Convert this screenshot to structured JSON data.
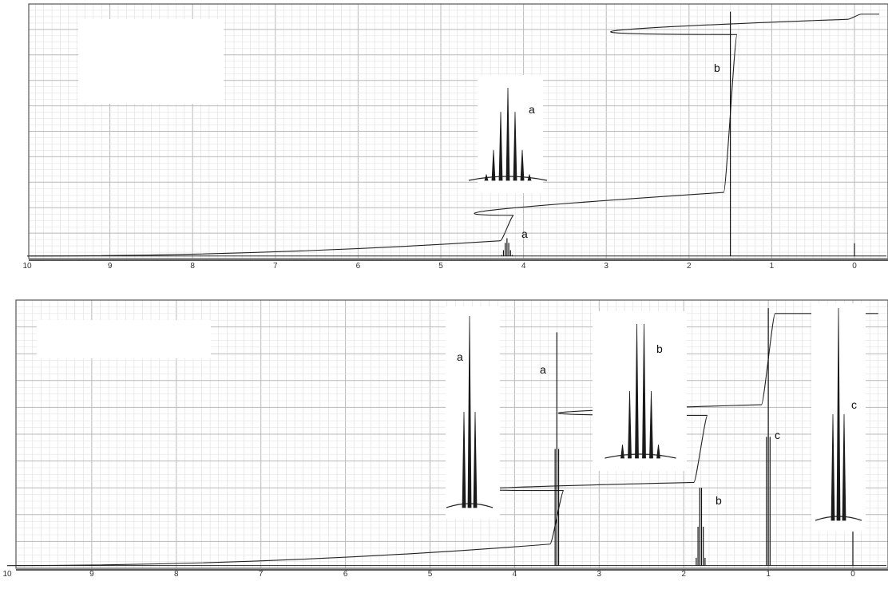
{
  "chart_data": [
    {
      "type": "line",
      "title": "",
      "xlabel": "",
      "ylabel": "",
      "x_axis_reversed": true,
      "xlim": [
        10,
        -0.3
      ],
      "ylim": [
        0,
        100
      ],
      "grid": true,
      "x_ticks": [
        "10",
        "9",
        "8",
        "7",
        "6",
        "5",
        "4",
        "3",
        "2",
        "1",
        "0"
      ],
      "peaks": [
        {
          "label": "a",
          "shift_ppm": 4.2,
          "multiplicity": "septet",
          "relative_height": 8
        },
        {
          "label": "b",
          "shift_ppm": 1.5,
          "multiplicity": "singlet",
          "relative_height": 97
        },
        {
          "label": "",
          "shift_ppm": 0.0,
          "multiplicity": "singlet",
          "relative_height": 6
        }
      ],
      "integral_steps": [
        {
          "shift_ppm": 4.2,
          "from": 7,
          "to": 17
        },
        {
          "shift_ppm": 1.5,
          "from": 26,
          "to": 88
        },
        {
          "shift_ppm": 0.0,
          "from": 94,
          "to": 96
        }
      ],
      "insets": [
        {
          "label": "a",
          "peak": "a",
          "multiplicity": "septet"
        }
      ],
      "series": [
        {
          "values": [
            {
              "x": 10,
              "y": 1
            },
            {
              "x": 4.25,
              "y": 1
            },
            {
              "x": 4.2,
              "y": 8
            },
            {
              "x": 4.15,
              "y": 1
            },
            {
              "x": 1.55,
              "y": 1
            },
            {
              "x": 1.5,
              "y": 97
            },
            {
              "x": 1.45,
              "y": 1
            },
            {
              "x": 0.02,
              "y": 1
            },
            {
              "x": 0,
              "y": 6
            },
            {
              "x": -0.02,
              "y": 1
            },
            {
              "x": -0.3,
              "y": 1
            }
          ]
        }
      ]
    },
    {
      "type": "line",
      "title": "",
      "xlabel": "",
      "ylabel": "",
      "x_axis_reversed": true,
      "xlim": [
        10,
        -0.3
      ],
      "ylim": [
        0,
        100
      ],
      "grid": true,
      "x_ticks": [
        "10",
        "9",
        "8",
        "7",
        "6",
        "5",
        "4",
        "3",
        "2",
        "1",
        "0"
      ],
      "peaks": [
        {
          "label": "a",
          "shift_ppm": 3.5,
          "multiplicity": "triplet",
          "relative_height": 88
        },
        {
          "label": "b",
          "shift_ppm": 1.8,
          "multiplicity": "sextet",
          "relative_height": 30
        },
        {
          "label": "c",
          "shift_ppm": 1.0,
          "multiplicity": "triplet",
          "relative_height": 97
        },
        {
          "label": "",
          "shift_ppm": 0.0,
          "multiplicity": "singlet",
          "relative_height": 14
        }
      ],
      "integral_steps": [
        {
          "shift_ppm": 3.5,
          "from": 9,
          "to": 29
        },
        {
          "shift_ppm": 1.8,
          "from": 32,
          "to": 57
        },
        {
          "shift_ppm": 1.0,
          "from": 61,
          "to": 95
        }
      ],
      "insets": [
        {
          "label": "a",
          "peak": "a",
          "multiplicity": "triplet"
        },
        {
          "label": "b",
          "peak": "b",
          "multiplicity": "sextet"
        },
        {
          "label": "c",
          "peak": "c",
          "multiplicity": "triplet"
        }
      ],
      "series": [
        {
          "values": [
            {
              "x": 10,
              "y": 1
            },
            {
              "x": 3.55,
              "y": 1
            },
            {
              "x": 3.5,
              "y": 88
            },
            {
              "x": 3.45,
              "y": 1
            },
            {
              "x": 1.85,
              "y": 1
            },
            {
              "x": 1.8,
              "y": 30
            },
            {
              "x": 1.75,
              "y": 1
            },
            {
              "x": 1.05,
              "y": 1
            },
            {
              "x": 1.0,
              "y": 97
            },
            {
              "x": 0.95,
              "y": 1
            },
            {
              "x": 0.02,
              "y": 1
            },
            {
              "x": 0,
              "y": 14
            },
            {
              "x": -0.02,
              "y": 1
            },
            {
              "x": -0.3,
              "y": 1
            }
          ]
        }
      ]
    }
  ]
}
